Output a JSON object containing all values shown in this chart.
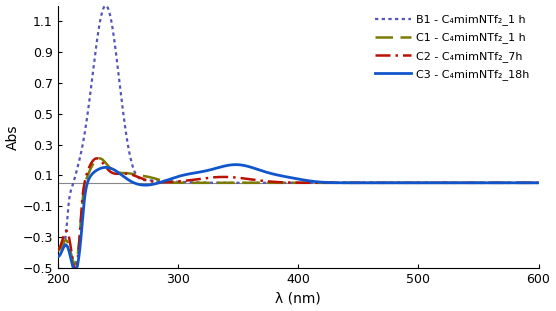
{
  "xlim": [
    200,
    600
  ],
  "ylim": [
    -0.5,
    1.2
  ],
  "xlabel": "λ (nm)",
  "ylabel": "Abs",
  "yticks": [
    -0.5,
    -0.3,
    -0.1,
    0.1,
    0.3,
    0.5,
    0.7,
    0.9,
    1.1
  ],
  "xticks": [
    200,
    300,
    400,
    500,
    600
  ],
  "hline_y": 0.052,
  "series": [
    {
      "label": "B1 - C₄mimNTf₂_1 h",
      "color": "#5555bb",
      "linestyle": "dotted",
      "linewidth": 1.6,
      "key": "B1"
    },
    {
      "label": "C1 - C₄mimNTf₂_1 h",
      "color": "#7b7b00",
      "linestyle": "dashed",
      "linewidth": 1.8,
      "key": "C1"
    },
    {
      "label": "C2 - C₄mimNTf₂_7h",
      "color": "#bb1100",
      "linestyle": "dashdot",
      "linewidth": 1.8,
      "key": "C2"
    },
    {
      "label": "C3 - C₄mimNTf₂_18h",
      "color": "#1155cc",
      "linestyle": "solid",
      "linewidth": 2.0,
      "key": "C3"
    }
  ],
  "background_color": "#ffffff",
  "legend_fontsize": 8,
  "axis_fontsize": 10,
  "tick_fontsize": 9
}
